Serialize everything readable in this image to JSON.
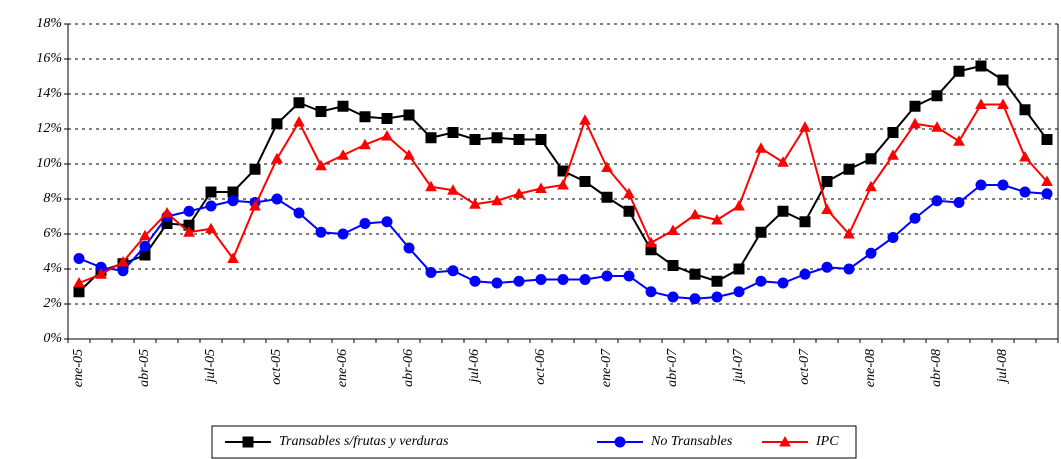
{
  "chart_data": {
    "type": "line",
    "categories": [
      "ene-05",
      null,
      null,
      "abr-05",
      null,
      null,
      "jul-05",
      null,
      null,
      "oct-05",
      null,
      null,
      "ene-06",
      null,
      null,
      "abr-06",
      null,
      null,
      "jul-06",
      null,
      null,
      "oct-06",
      null,
      null,
      "ene-07",
      null,
      null,
      "abr-07",
      null,
      null,
      "jul-07",
      null,
      null,
      "oct-07",
      null,
      null,
      "ene-08",
      null,
      null,
      "abr-08",
      null,
      null,
      "jul-08",
      null,
      null
    ],
    "series": [
      {
        "name": "Transables s/frutas y verduras",
        "color": "#000000",
        "marker": "square",
        "values": [
          2.7,
          3.9,
          4.3,
          4.8,
          6.6,
          6.5,
          8.4,
          8.4,
          9.7,
          12.3,
          13.5,
          13.0,
          13.3,
          12.7,
          12.6,
          12.8,
          11.5,
          11.8,
          11.4,
          11.5,
          11.4,
          11.4,
          9.6,
          9.0,
          8.1,
          7.3,
          5.1,
          4.2,
          3.7,
          3.3,
          4.0,
          6.1,
          7.3,
          6.7,
          9.0,
          9.7,
          10.3,
          11.8,
          13.3,
          13.9,
          15.3,
          15.6,
          14.8,
          13.1,
          11.4
        ]
      },
      {
        "name": "No Transables",
        "color": "#0000ff",
        "marker": "circle",
        "values": [
          4.6,
          4.1,
          3.9,
          5.3,
          7.0,
          7.3,
          7.6,
          7.9,
          7.8,
          8.0,
          7.2,
          6.1,
          6.0,
          6.6,
          6.7,
          5.2,
          3.8,
          3.9,
          3.3,
          3.2,
          3.3,
          3.4,
          3.4,
          3.4,
          3.6,
          3.6,
          2.7,
          2.4,
          2.3,
          2.4,
          2.7,
          3.3,
          3.2,
          3.7,
          4.1,
          4.0,
          4.9,
          5.8,
          6.9,
          7.9,
          7.8,
          8.8,
          8.8,
          8.4,
          8.3
        ]
      },
      {
        "name": "IPC",
        "color": "#ff0000",
        "marker": "triangle",
        "values": [
          3.2,
          3.7,
          4.4,
          5.9,
          7.2,
          6.1,
          6.3,
          4.6,
          7.6,
          10.3,
          12.4,
          9.9,
          10.5,
          11.1,
          11.6,
          10.5,
          8.7,
          8.5,
          7.7,
          7.9,
          8.3,
          8.6,
          8.8,
          12.5,
          9.8,
          8.3,
          5.5,
          6.2,
          7.1,
          6.8,
          7.6,
          10.9,
          10.1,
          12.1,
          7.4,
          6.0,
          8.7,
          10.5,
          12.3,
          12.1,
          11.3,
          13.4,
          13.4,
          10.4,
          9.0
        ]
      }
    ],
    "ylim": [
      0,
      18
    ],
    "yticks": [
      {
        "value": 0,
        "label": "0%"
      },
      {
        "value": 2,
        "label": "2%"
      },
      {
        "value": 4,
        "label": "4%"
      },
      {
        "value": 6,
        "label": "6%"
      },
      {
        "value": 8,
        "label": "8%"
      },
      {
        "value": 10,
        "label": "10%"
      },
      {
        "value": 12,
        "label": "12%"
      },
      {
        "value": 14,
        "label": "14%"
      },
      {
        "value": 16,
        "label": "16%"
      },
      {
        "value": 18,
        "label": "18%"
      }
    ],
    "grid": true,
    "legend": "bottom"
  }
}
